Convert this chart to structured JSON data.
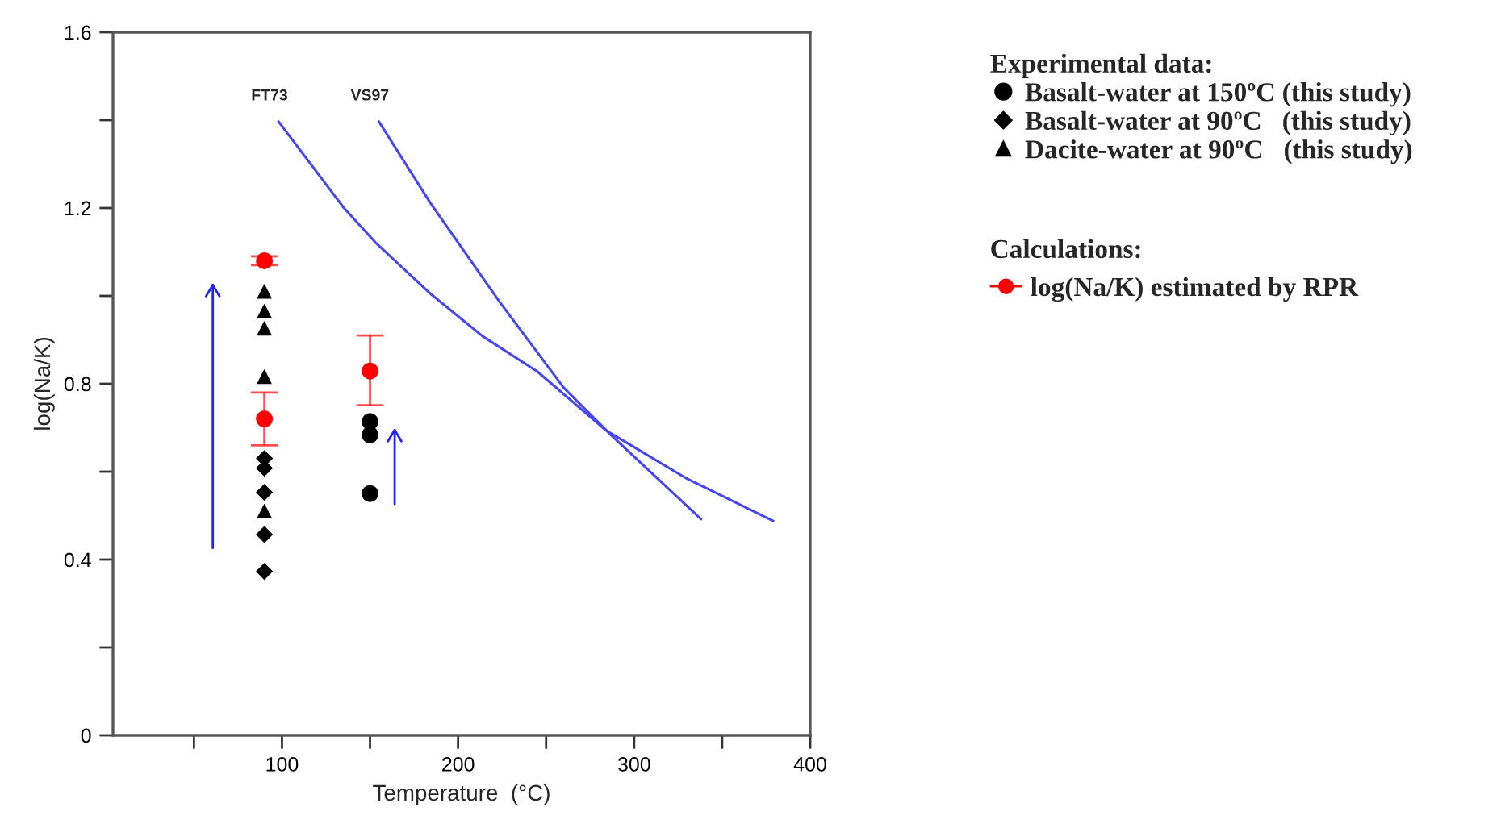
{
  "chart_data": {
    "type": "scatter",
    "xlabel": "Temperature  (°C)",
    "ylabel": "log(Na/K)",
    "legend_title": "Experimental data:",
    "legend": "right",
    "grid": false,
    "xlim": [
      4,
      400
    ],
    "xticks": [
      {
        "value": 50,
        "label": null
      },
      100,
      {
        "value": 150,
        "label": null
      },
      200,
      {
        "value": 250,
        "label": null
      },
      300,
      {
        "value": 350,
        "label": null
      },
      400
    ],
    "ylim": [
      0,
      1.6
    ],
    "yticks": [
      0,
      {
        "value": 0.2,
        "label": null
      },
      0.4,
      {
        "value": 0.6,
        "label": null
      },
      0.8,
      {
        "value": 1.0,
        "label": null
      },
      1.2,
      {
        "value": 1.4,
        "label": null
      },
      1.6
    ],
    "annotations": [
      "Calculations:"
    ],
    "series": [
      {
        "name": "Basalt-water at 150ºC (this study)",
        "marker": "circle",
        "color": "#000000",
        "x": [
          150,
          150,
          150
        ],
        "values": [
          0.714,
          0.684,
          0.55
        ]
      },
      {
        "name": "Basalt-water at 90ºC   (this study)",
        "marker": "diamond",
        "color": "#000000",
        "x": [
          90,
          90,
          90,
          90,
          90
        ],
        "values": [
          0.63,
          0.608,
          0.553,
          0.457,
          0.373
        ]
      },
      {
        "name": "Dacite-water at 90ºC   (this study)",
        "marker": "triangle",
        "color": "#000000",
        "x": [
          90,
          90,
          90,
          90,
          90
        ],
        "values": [
          1.01,
          0.965,
          0.926,
          0.816,
          0.51
        ]
      },
      {
        "name": "log(Na/K) estimated by RPR",
        "marker": "circle",
        "color": "#ff0000",
        "x": [
          90,
          90,
          150
        ],
        "values": [
          1.08,
          0.72,
          0.829
        ],
        "errors": [
          [
            1.07,
            1.09
          ],
          [
            0.66,
            0.78
          ],
          [
            0.751,
            0.91
          ]
        ]
      },
      {
        "name": "FT73",
        "type": "line",
        "marker": "none",
        "color": "#4646f0",
        "x": [
          98,
          135,
          153,
          184,
          214,
          245,
          284,
          330,
          379
        ],
        "values": [
          1.397,
          1.201,
          1.122,
          1.006,
          0.908,
          0.828,
          0.694,
          0.584,
          0.488
        ]
      },
      {
        "name": "VS97",
        "type": "line",
        "marker": "none",
        "color": "#4646f0",
        "x": [
          155,
          184,
          223.5,
          260,
          287.5,
          338
        ],
        "values": [
          1.397,
          1.213,
          0.987,
          0.791,
          0.681,
          0.492
        ]
      }
    ]
  }
}
